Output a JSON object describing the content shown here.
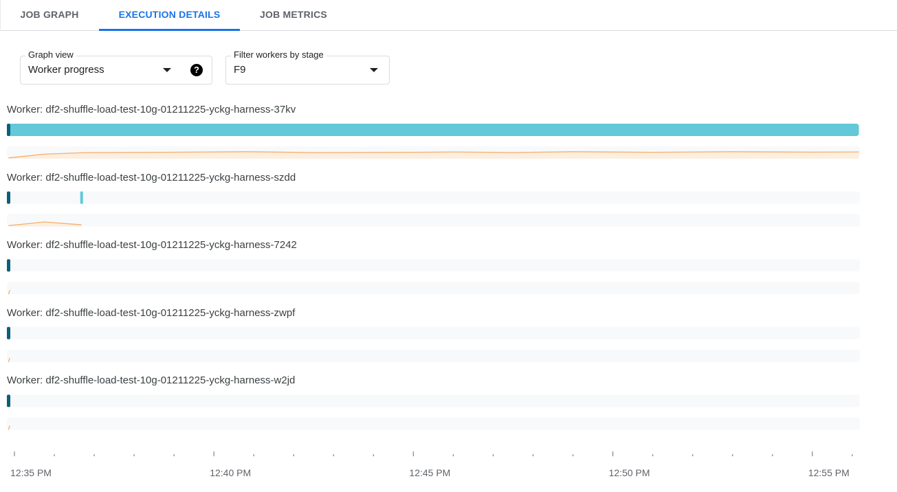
{
  "tabs": [
    {
      "label": "JOB GRAPH",
      "active": false
    },
    {
      "label": "EXECUTION DETAILS",
      "active": true
    },
    {
      "label": "JOB METRICS",
      "active": false
    }
  ],
  "graph_view": {
    "label": "Graph view",
    "value": "Worker progress",
    "help_icon": "help-circle-icon"
  },
  "stage_filter": {
    "label": "Filter workers by stage",
    "value": "F9"
  },
  "colors": {
    "accent": "#1a73e8",
    "progress_bar": "#63c8d8",
    "progress_start": "#0b5f7a",
    "sparkline": "#f6ad6a",
    "sparkline_fill": "#fdefe0",
    "track": "#f8f9fa"
  },
  "workers": [
    {
      "label": "Worker: df2-shuffle-load-test-10g-01211225-yckg-harness-37kv",
      "bar": [
        "12:34:51",
        "12:56:10"
      ],
      "markers": [],
      "sparkline": [
        [
          "12:34:51",
          0.1
        ],
        [
          "12:35:45",
          0.55
        ],
        [
          "12:36:50",
          0.75
        ],
        [
          "12:38:45",
          0.78
        ],
        [
          "12:40:50",
          0.85
        ],
        [
          "12:42:30",
          0.75
        ],
        [
          "12:45:00",
          0.78
        ],
        [
          "12:46:00",
          0.82
        ],
        [
          "12:47:30",
          0.75
        ],
        [
          "12:49:00",
          0.85
        ],
        [
          "12:51:00",
          0.78
        ],
        [
          "12:53:00",
          0.85
        ],
        [
          "12:55:00",
          0.8
        ],
        [
          "12:56:10",
          0.82
        ]
      ]
    },
    {
      "label": "Worker: df2-shuffle-load-test-10g-01211225-yckg-harness-szdd",
      "bar": null,
      "markers": [
        "12:36:41"
      ],
      "sparkline": [
        [
          "12:34:51",
          0.1
        ],
        [
          "12:35:45",
          0.55
        ],
        [
          "12:36:41",
          0.2
        ]
      ]
    },
    {
      "label": "Worker: df2-shuffle-load-test-10g-01211225-yckg-harness-7242",
      "bar": null,
      "markers": [],
      "sparkline": [
        [
          "12:34:51",
          0.0
        ],
        [
          "12:34:53",
          0.5
        ]
      ]
    },
    {
      "label": "Worker: df2-shuffle-load-test-10g-01211225-yckg-harness-zwpf",
      "bar": null,
      "markers": [],
      "sparkline": [
        [
          "12:34:51",
          0.0
        ],
        [
          "12:34:53",
          0.5
        ]
      ]
    },
    {
      "label": "Worker: df2-shuffle-load-test-10g-01211225-yckg-harness-w2jd",
      "bar": null,
      "markers": [],
      "sparkline": [
        [
          "12:34:51",
          0.0
        ],
        [
          "12:34:53",
          0.5
        ]
      ]
    }
  ],
  "time_axis": {
    "range": [
      "12:34:51",
      "12:56:10"
    ],
    "major_ticks": [
      "12:35 PM",
      "12:40 PM",
      "12:45 PM",
      "12:50 PM",
      "12:55 PM"
    ],
    "minor_tick_interval_minutes": 1
  }
}
